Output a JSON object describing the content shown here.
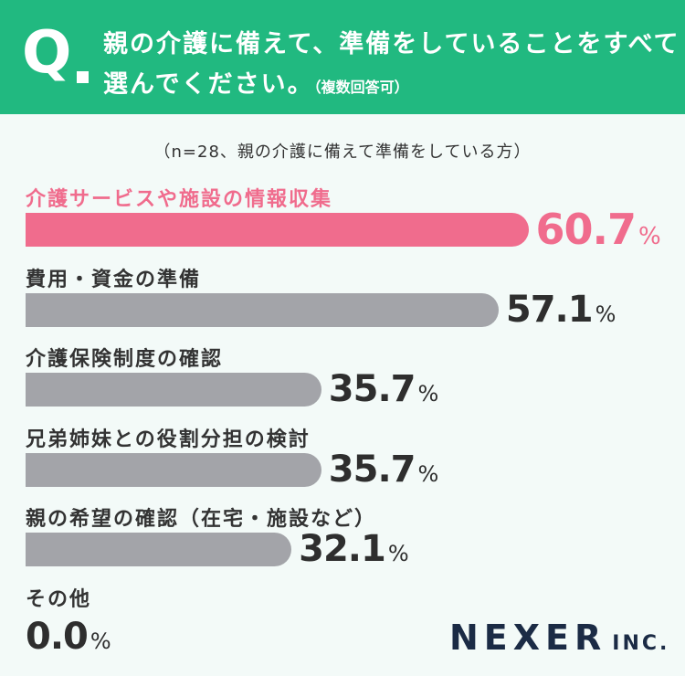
{
  "header": {
    "q_mark": "Q",
    "question_line1": "親の介護に備えて、準備をしていることをすべて",
    "question_line2": "選んでください。",
    "question_note": "（複数回答可）",
    "background_color": "#21b980"
  },
  "sample_note": "（n=28、親の介護に備えて準備をしている方）",
  "chart_data": {
    "type": "bar",
    "orientation": "horizontal",
    "categories": [
      "介護サービスや施設の情報収集",
      "費用・資金の準備",
      "介護保険制度の確認",
      "兄弟姉妹との役割分担の検討",
      "親の希望の確認（在宅・施設など）",
      "その他"
    ],
    "values": [
      60.7,
      57.1,
      35.7,
      35.7,
      32.1,
      0.0
    ],
    "value_labels": [
      "60.7",
      "57.1",
      "35.7",
      "35.7",
      "32.1",
      "0.0"
    ],
    "unit": "%",
    "highlight_index": 0,
    "highlight_color": "#f06c8d",
    "bar_color": "#a3a4a9"
  },
  "logo": {
    "main": "NEXER",
    "sub": "INC."
  }
}
